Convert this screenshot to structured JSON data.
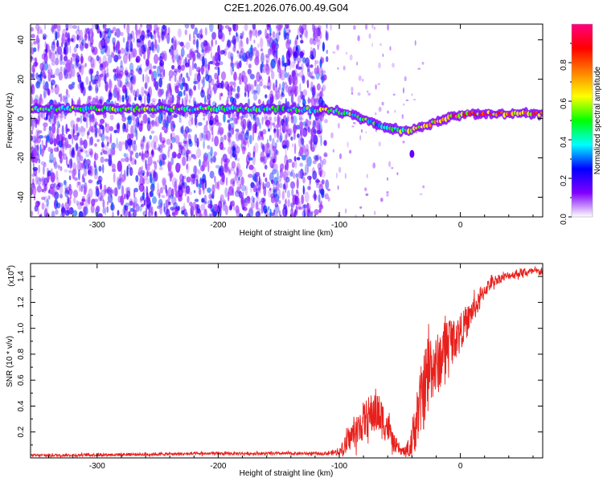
{
  "figure": {
    "title": "C2E1.2026.076.00.49.G04"
  },
  "chart_data": [
    {
      "type": "heatmap",
      "title": "C2E1.2026.076.00.49.G04",
      "xlabel": "Height of straight line (km)",
      "ylabel": "Frequency (Hz)",
      "xlim": [
        -355,
        68
      ],
      "ylim": [
        -50,
        48
      ],
      "xticks": [
        -300,
        -200,
        -100,
        0
      ],
      "yticks": [
        -40,
        -20,
        0,
        20,
        40
      ],
      "colorbar": {
        "label": "Normalized spectral amplitude",
        "range": [
          0,
          1
        ],
        "ticks": [
          0.0,
          0.2,
          0.4,
          0.6,
          0.8
        ],
        "tick_labels": [
          "0.0",
          "0.2",
          "0.4",
          "0.6",
          "0.8"
        ],
        "colormap": [
          "#ffffff",
          "#8000ff",
          "#0000ff",
          "#00ffff",
          "#00ff00",
          "#ffff00",
          "#ff8000",
          "#ff0000",
          "#ff0080"
        ]
      },
      "noise_region_x": [
        -355,
        -110
      ],
      "ridge": {
        "x": [
          -355,
          -300,
          -250,
          -200,
          -150,
          -120,
          -110,
          -100,
          -90,
          -80,
          -70,
          -60,
          -50,
          -45,
          -40,
          -35,
          -30,
          -25,
          -20,
          -15,
          -10,
          -5,
          0,
          5,
          10,
          20,
          40,
          68
        ],
        "y": [
          5,
          5,
          5,
          5,
          5,
          4.5,
          4,
          3.5,
          2,
          0,
          -2.5,
          -4.5,
          -6,
          -6.5,
          -6,
          -5,
          -4,
          -2.5,
          -1.5,
          -0.5,
          0.5,
          1.5,
          2,
          2.5,
          2.5,
          2.5,
          2.5,
          2.5
        ],
        "amplitude": [
          0.55,
          0.6,
          0.55,
          0.55,
          0.5,
          0.55,
          0.6,
          0.55,
          0.55,
          0.55,
          0.5,
          0.55,
          0.6,
          0.65,
          0.6,
          0.65,
          0.7,
          0.75,
          0.75,
          0.8,
          0.85,
          0.85,
          0.9,
          0.92,
          0.95,
          0.95,
          0.9,
          0.75
        ]
      },
      "features": [
        {
          "x": -40,
          "y": -18,
          "amplitude": 0.15
        }
      ]
    },
    {
      "type": "line",
      "xlabel": "Height of straight line (km)",
      "ylabel": "SNR (10 * v/v)",
      "y_multiplier_label": "(x10",
      "y_multiplier_exp": "4",
      "y_multiplier_close": ")",
      "xlim": [
        -355,
        68
      ],
      "ylim": [
        0.0,
        1.5
      ],
      "xticks": [
        -300,
        -200,
        -100,
        0
      ],
      "yticks": [
        0.2,
        0.4,
        0.6,
        0.8,
        1.0,
        1.2,
        1.4
      ],
      "series": [
        {
          "name": "SNR",
          "color": "#e8201c",
          "x": [
            -355,
            -300,
            -250,
            -200,
            -150,
            -110,
            -100,
            -95,
            -90,
            -85,
            -80,
            -75,
            -70,
            -65,
            -60,
            -55,
            -50,
            -45,
            -40,
            -35,
            -30,
            -27,
            -25,
            -20,
            -15,
            -10,
            -5,
            0,
            5,
            10,
            15,
            20,
            25,
            30,
            40,
            50,
            60,
            68
          ],
          "y": [
            0.02,
            0.025,
            0.03,
            0.035,
            0.035,
            0.035,
            0.05,
            0.1,
            0.18,
            0.22,
            0.3,
            0.34,
            0.38,
            0.32,
            0.25,
            0.12,
            0.06,
            0.05,
            0.15,
            0.38,
            0.55,
            0.7,
            0.75,
            0.72,
            0.82,
            0.95,
            0.93,
            1.0,
            1.05,
            1.15,
            1.2,
            1.3,
            1.35,
            1.38,
            1.41,
            1.43,
            1.44,
            1.44
          ],
          "noise_amp": [
            0.01,
            0.012,
            0.012,
            0.012,
            0.012,
            0.012,
            0.03,
            0.08,
            0.1,
            0.12,
            0.15,
            0.16,
            0.18,
            0.16,
            0.12,
            0.07,
            0.03,
            0.04,
            0.15,
            0.25,
            0.3,
            0.3,
            0.28,
            0.25,
            0.22,
            0.2,
            0.15,
            0.13,
            0.12,
            0.1,
            0.08,
            0.06,
            0.05,
            0.04,
            0.03,
            0.03,
            0.03,
            0.03
          ]
        }
      ]
    }
  ]
}
